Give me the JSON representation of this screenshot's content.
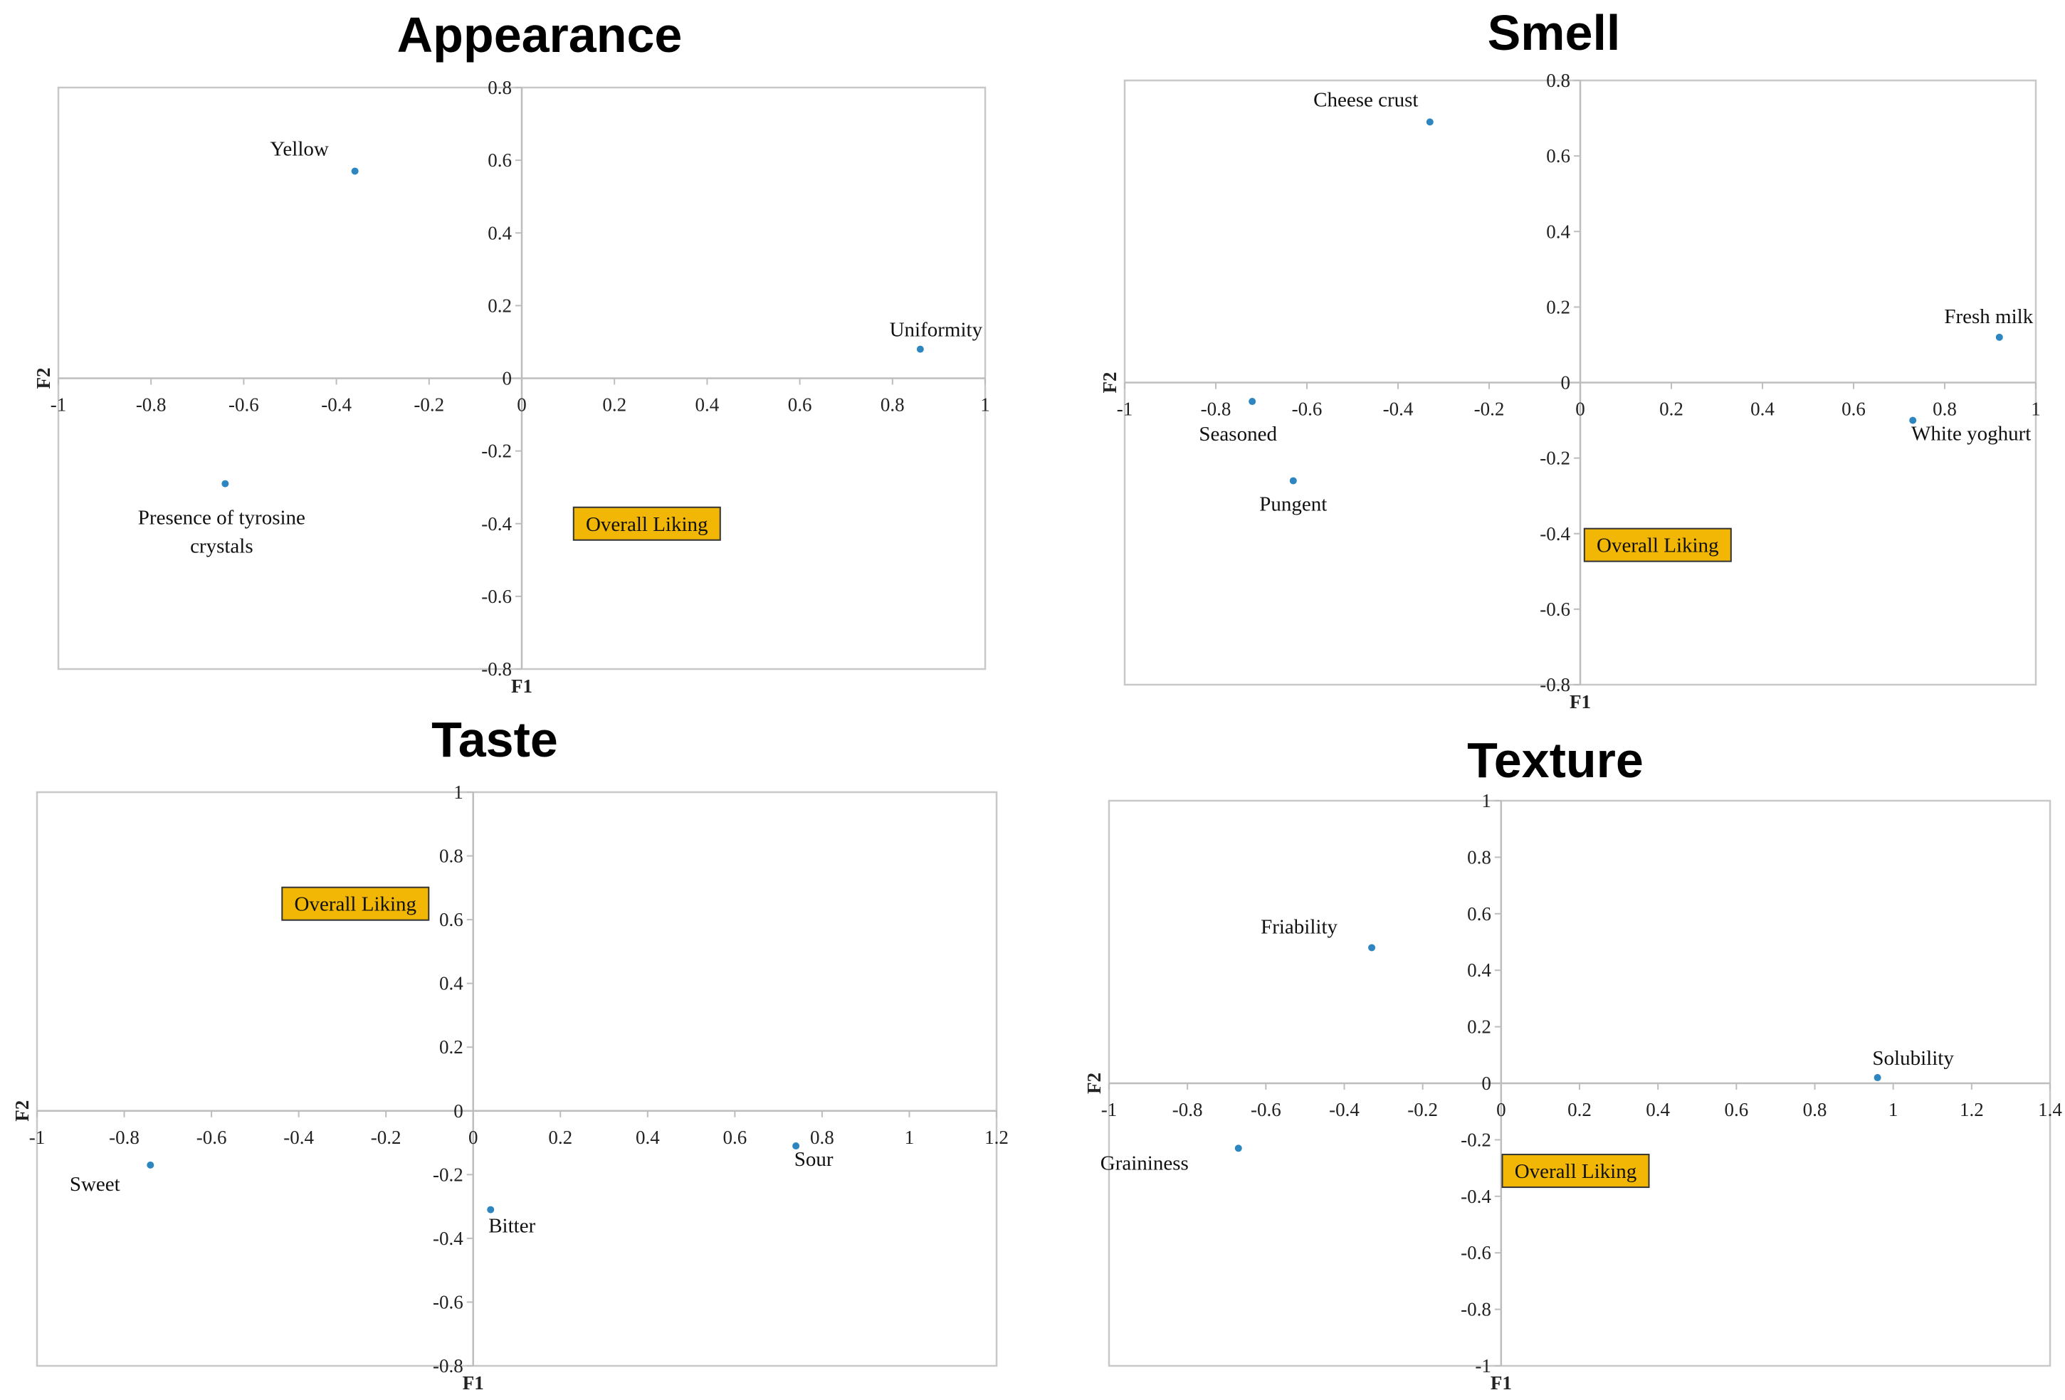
{
  "chart_data": [
    {
      "type": "scatter",
      "title": "Appearance",
      "xlabel": "F1",
      "ylabel": "F2",
      "xlim": [
        -1,
        1
      ],
      "ylim": [
        -0.8,
        0.8
      ],
      "xticks": [
        -1,
        -0.8,
        -0.6,
        -0.4,
        -0.2,
        0,
        0.2,
        0.4,
        0.6,
        0.8,
        1
      ],
      "yticks": [
        -0.8,
        -0.6,
        -0.4,
        -0.2,
        0,
        0.2,
        0.4,
        0.6,
        0.8
      ],
      "points": [
        {
          "label": "Yellow",
          "x": -0.36,
          "y": 0.57
        },
        {
          "label": "Uniformity",
          "x": 0.86,
          "y": 0.08
        },
        {
          "label": "Presence of tyrosine crystals",
          "x": -0.64,
          "y": -0.29
        }
      ],
      "annotation": {
        "label": "Overall Liking",
        "x": 0.27,
        "y": -0.4
      }
    },
    {
      "type": "scatter",
      "title": "Smell",
      "xlabel": "F1",
      "ylabel": "F2",
      "xlim": [
        -1,
        1
      ],
      "ylim": [
        -0.8,
        0.8
      ],
      "xticks": [
        -1,
        -0.8,
        -0.6,
        -0.4,
        -0.2,
        0,
        0.2,
        0.4,
        0.6,
        0.8,
        1
      ],
      "yticks": [
        -0.8,
        -0.6,
        -0.4,
        -0.2,
        0,
        0.2,
        0.4,
        0.6,
        0.8
      ],
      "points": [
        {
          "label": "Cheese crust",
          "x": -0.33,
          "y": 0.69
        },
        {
          "label": "Fresh milk",
          "x": 0.92,
          "y": 0.12
        },
        {
          "label": "Seasoned",
          "x": -0.72,
          "y": -0.05
        },
        {
          "label": "White yoghurt",
          "x": 0.73,
          "y": -0.1
        },
        {
          "label": "Pungent",
          "x": -0.63,
          "y": -0.26
        }
      ],
      "annotation": {
        "label": "Overall Liking",
        "x": 0.17,
        "y": -0.43
      }
    },
    {
      "type": "scatter",
      "title": "Taste",
      "xlabel": "F1",
      "ylabel": "F2",
      "xlim": [
        -1,
        1.2
      ],
      "ylim": [
        -0.8,
        1
      ],
      "xticks": [
        -1,
        -0.8,
        -0.6,
        -0.4,
        -0.2,
        0,
        0.2,
        0.4,
        0.6,
        0.8,
        1,
        1.2
      ],
      "yticks": [
        -0.8,
        -0.6,
        -0.4,
        -0.2,
        0,
        0.2,
        0.4,
        0.6,
        0.8,
        1
      ],
      "points": [
        {
          "label": "Sweet",
          "x": -0.74,
          "y": -0.17
        },
        {
          "label": "Bitter",
          "x": 0.04,
          "y": -0.31
        },
        {
          "label": "Sour",
          "x": 0.74,
          "y": -0.11
        }
      ],
      "annotation": {
        "label": "Overall Liking",
        "x": -0.27,
        "y": 0.65
      }
    },
    {
      "type": "scatter",
      "title": "Texture",
      "xlabel": "F1",
      "ylabel": "F2",
      "xlim": [
        -1,
        1.4
      ],
      "ylim": [
        -1,
        1
      ],
      "xticks": [
        -1,
        -0.8,
        -0.6,
        -0.4,
        -0.2,
        0,
        0.2,
        0.4,
        0.6,
        0.8,
        1,
        1.2,
        1.4
      ],
      "yticks": [
        -1,
        -0.8,
        -0.6,
        -0.4,
        -0.2,
        0,
        0.2,
        0.4,
        0.6,
        0.8,
        1
      ],
      "points": [
        {
          "label": "Friability",
          "x": -0.33,
          "y": 0.48
        },
        {
          "label": "Solubility",
          "x": 0.96,
          "y": 0.02
        },
        {
          "label": "Graininess",
          "x": -0.67,
          "y": -0.23
        }
      ],
      "annotation": {
        "label": "Overall Liking",
        "x": 0.19,
        "y": -0.31
      }
    }
  ],
  "colors": {
    "point": "#2e86c1",
    "overall_box": "#f2b705"
  }
}
